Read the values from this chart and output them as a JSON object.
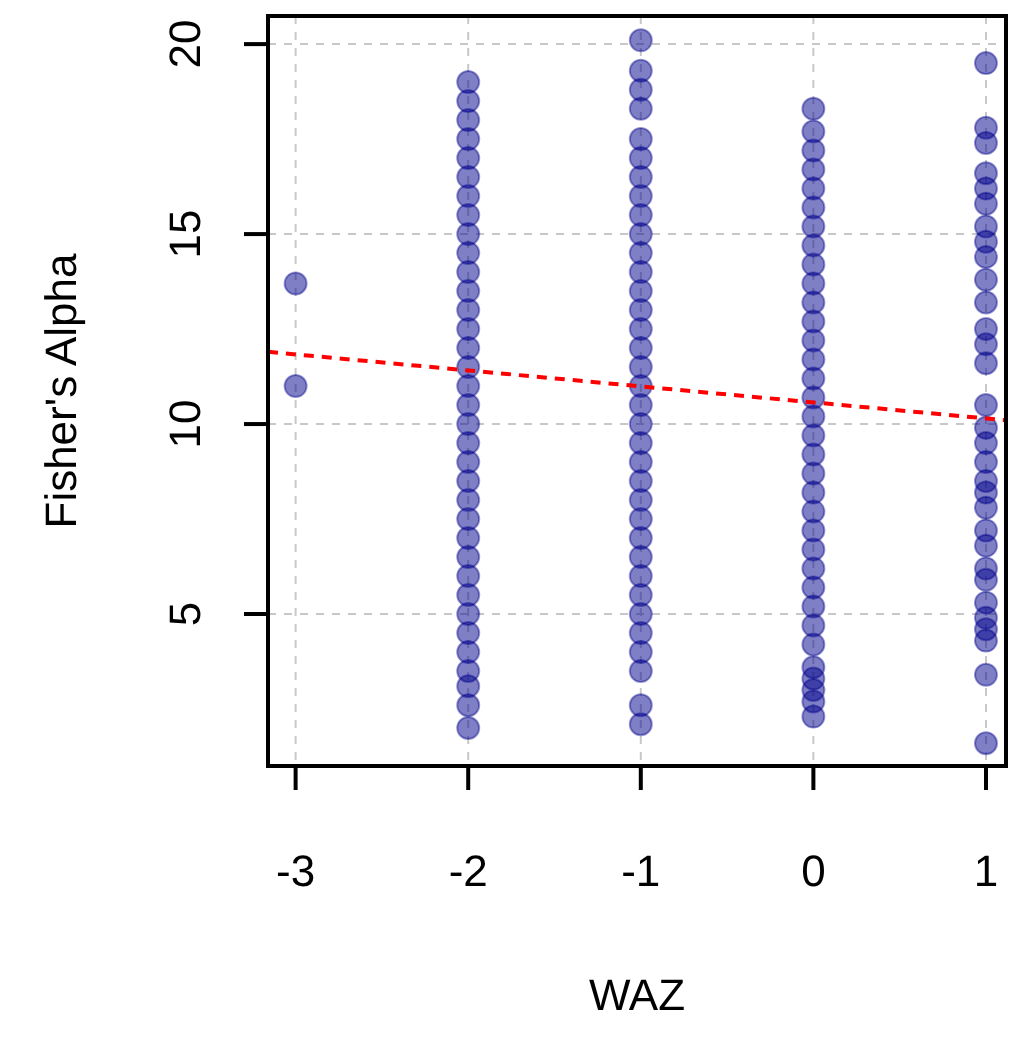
{
  "chart_data": {
    "type": "scatter",
    "xlabel": "WAZ",
    "ylabel": "Fisher's Alpha",
    "xlim": [
      -3.16,
      1.116
    ],
    "ylim": [
      1,
      20.74
    ],
    "xticks": [
      -3,
      -2,
      -1,
      0,
      1
    ],
    "yticks": [
      5,
      10,
      15,
      20
    ],
    "grid": true,
    "series": [
      {
        "color": "#00008b",
        "marker": "circle",
        "x": [
          -3,
          -3
        ],
        "values": [
          13.7,
          11.0
        ]
      },
      {
        "color": "#00008b",
        "marker": "circle",
        "x": [
          -2,
          -2,
          -2,
          -2,
          -2,
          -2,
          -2,
          -2,
          -2,
          -2,
          -2,
          -2,
          -2,
          -2,
          -2,
          -2,
          -2,
          -2,
          -2,
          -2,
          -2,
          -2,
          -2,
          -2,
          -2,
          -2,
          -2,
          -2,
          -2,
          -2,
          -2,
          -2,
          -2,
          -2,
          -2
        ],
        "values": [
          2.0,
          2.6,
          3.1,
          3.5,
          4.0,
          4.5,
          5.0,
          5.5,
          6.0,
          6.5,
          7.0,
          7.5,
          8.0,
          8.5,
          9.0,
          9.5,
          10.0,
          10.5,
          11.0,
          11.5,
          12.0,
          12.5,
          13.0,
          13.5,
          14.0,
          14.5,
          15.0,
          15.5,
          16.0,
          16.5,
          17.0,
          17.5,
          18.0,
          18.5,
          19.0
        ]
      },
      {
        "color": "#00008b",
        "marker": "circle",
        "x": [
          -1,
          -1,
          -1,
          -1,
          -1,
          -1,
          -1,
          -1,
          -1,
          -1,
          -1,
          -1,
          -1,
          -1,
          -1,
          -1,
          -1,
          -1,
          -1,
          -1,
          -1,
          -1,
          -1,
          -1,
          -1,
          -1,
          -1,
          -1,
          -1,
          -1,
          -1,
          -1,
          -1,
          -1,
          -1
        ],
        "values": [
          2.1,
          2.6,
          3.5,
          4.0,
          4.5,
          5.0,
          5.5,
          6.0,
          6.5,
          7.0,
          7.5,
          8.0,
          8.5,
          9.0,
          9.5,
          10.0,
          10.5,
          11.0,
          11.5,
          12.0,
          12.5,
          13.0,
          13.5,
          14.0,
          14.5,
          15.0,
          15.5,
          16.0,
          16.5,
          17.0,
          17.5,
          18.3,
          18.8,
          19.3,
          20.1
        ]
      },
      {
        "color": "#00008b",
        "marker": "circle",
        "x": [
          0,
          0,
          0,
          0,
          0,
          0,
          0,
          0,
          0,
          0,
          0,
          0,
          0,
          0,
          0,
          0,
          0,
          0,
          0,
          0,
          0,
          0,
          0,
          0,
          0,
          0,
          0,
          0,
          0,
          0,
          0,
          0,
          0,
          0
        ],
        "values": [
          2.3,
          2.7,
          3.0,
          3.3,
          3.6,
          4.2,
          4.7,
          5.2,
          5.7,
          6.2,
          6.7,
          7.2,
          7.7,
          8.2,
          8.7,
          9.2,
          9.7,
          10.2,
          10.7,
          11.2,
          11.7,
          12.2,
          12.7,
          13.2,
          13.7,
          14.2,
          14.7,
          15.2,
          15.7,
          16.2,
          16.7,
          17.2,
          17.7,
          18.3
        ]
      },
      {
        "color": "#00008b",
        "marker": "circle",
        "x": [
          1,
          1,
          1,
          1,
          1,
          1,
          1,
          1,
          1,
          1,
          1,
          1,
          1,
          1,
          1,
          1,
          1,
          1,
          1,
          1,
          1,
          1,
          1,
          1,
          1,
          1,
          1,
          1,
          1,
          1,
          1
        ],
        "values": [
          19.5,
          17.8,
          17.4,
          16.6,
          16.2,
          15.8,
          15.2,
          14.8,
          14.4,
          13.8,
          13.2,
          12.5,
          12.1,
          11.6,
          10.5,
          9.9,
          9.5,
          9.0,
          8.5,
          8.2,
          7.8,
          7.2,
          6.8,
          6.2,
          5.9,
          5.3,
          4.9,
          4.6,
          4.3,
          3.4,
          1.6
        ]
      },
      {
        "type": "line",
        "color": "#ff0000",
        "line_style": "dashed",
        "marker": "none",
        "x": [
          -3.16,
          1.116
        ],
        "values": [
          11.9,
          10.1
        ]
      }
    ]
  }
}
